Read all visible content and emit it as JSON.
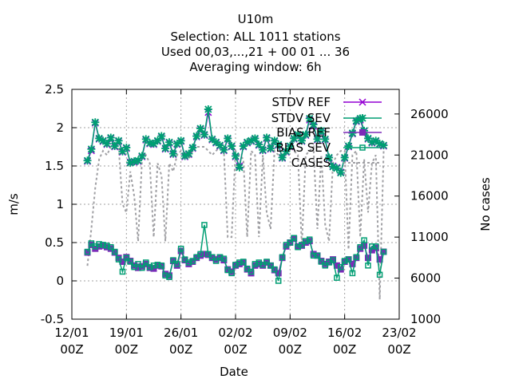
{
  "chart_data": {
    "type": "line",
    "title": [
      "U10m",
      "Selection: ALL    1011 stations",
      "Used  00,03,...,21  + 00 01 ... 36",
      "Averaging window:  6h"
    ],
    "xlabel": "Date",
    "ylabel": "m/s",
    "y2label": "No cases",
    "xlim": [
      "2024-01-12 00:00",
      "2024-02-23 00:00"
    ],
    "ylim": [
      -0.5,
      2.5
    ],
    "y2lim": [
      1000,
      29000
    ],
    "x_tick_labels": [
      [
        "12/01",
        "00Z"
      ],
      [
        "19/01",
        "00Z"
      ],
      [
        "26/01",
        "00Z"
      ],
      [
        "02/02",
        "00Z"
      ],
      [
        "09/02",
        "00Z"
      ],
      [
        "16/02",
        "00Z"
      ],
      [
        "23/02",
        "00Z"
      ]
    ],
    "y_tick_labels": [
      "-0.5",
      "0",
      "0.5",
      "1",
      "1.5",
      "2",
      "2.5"
    ],
    "y2_tick_labels": [
      "1000",
      "6000",
      "11000",
      "16000",
      "21000",
      "26000"
    ],
    "grid": true,
    "legend_position": "top-right",
    "x_dates": [
      "2024-01-14 00:00",
      "2024-01-14 12:00",
      "2024-01-15 00:00",
      "2024-01-15 12:00",
      "2024-01-16 00:00",
      "2024-01-16 12:00",
      "2024-01-17 00:00",
      "2024-01-17 12:00",
      "2024-01-18 00:00",
      "2024-01-18 12:00",
      "2024-01-19 00:00",
      "2024-01-19 12:00",
      "2024-01-20 00:00",
      "2024-01-20 12:00",
      "2024-01-21 00:00",
      "2024-01-21 12:00",
      "2024-01-22 00:00",
      "2024-01-22 12:00",
      "2024-01-23 00:00",
      "2024-01-23 12:00",
      "2024-01-24 00:00",
      "2024-01-24 12:00",
      "2024-01-25 00:00",
      "2024-01-25 12:00",
      "2024-01-26 00:00",
      "2024-01-26 12:00",
      "2024-01-27 00:00",
      "2024-01-27 12:00",
      "2024-01-28 00:00",
      "2024-01-28 12:00",
      "2024-01-29 00:00",
      "2024-01-29 12:00",
      "2024-01-30 00:00",
      "2024-01-30 12:00",
      "2024-01-31 00:00",
      "2024-01-31 12:00",
      "2024-02-01 00:00",
      "2024-02-01 12:00",
      "2024-02-02 00:00",
      "2024-02-02 12:00",
      "2024-02-03 00:00",
      "2024-02-03 12:00",
      "2024-02-04 00:00",
      "2024-02-04 12:00",
      "2024-02-05 00:00",
      "2024-02-05 12:00",
      "2024-02-06 00:00",
      "2024-02-06 12:00",
      "2024-02-07 00:00",
      "2024-02-07 12:00",
      "2024-02-08 00:00",
      "2024-02-08 12:00",
      "2024-02-09 00:00",
      "2024-02-09 12:00",
      "2024-02-10 00:00",
      "2024-02-10 12:00",
      "2024-02-11 00:00",
      "2024-02-11 12:00",
      "2024-02-12 00:00",
      "2024-02-12 12:00",
      "2024-02-13 00:00",
      "2024-02-13 12:00",
      "2024-02-14 00:00",
      "2024-02-14 12:00",
      "2024-02-15 00:00",
      "2024-02-15 12:00",
      "2024-02-16 00:00",
      "2024-02-16 12:00",
      "2024-02-17 00:00",
      "2024-02-17 12:00",
      "2024-02-18 00:00",
      "2024-02-18 12:00",
      "2024-02-19 00:00",
      "2024-02-19 12:00",
      "2024-02-20 00:00",
      "2024-02-20 12:00",
      "2024-02-21 00:00"
    ],
    "series": [
      {
        "name": "STDV REF",
        "axis": "y1",
        "color": "#9400d3",
        "marker": "cross",
        "values": [
          1.56,
          1.7,
          2.06,
          1.85,
          1.82,
          1.78,
          1.86,
          1.75,
          1.82,
          1.68,
          1.73,
          1.55,
          1.55,
          1.56,
          1.62,
          1.84,
          1.79,
          1.78,
          1.82,
          1.88,
          1.72,
          1.8,
          1.65,
          1.78,
          1.82,
          1.62,
          1.65,
          1.73,
          1.88,
          1.98,
          1.9,
          2.2,
          1.84,
          1.8,
          1.76,
          1.7,
          1.85,
          1.75,
          1.62,
          1.5,
          1.75,
          1.8,
          1.82,
          1.85,
          1.77,
          1.7,
          1.86,
          1.72,
          1.82,
          1.77,
          1.6,
          1.68,
          1.75,
          1.85,
          1.9,
          1.82,
          1.9,
          2.1,
          2.02,
          1.84,
          1.95,
          1.84,
          1.6,
          1.5,
          1.48,
          1.42,
          1.6,
          1.75,
          1.92,
          2.08,
          2.1,
          1.95,
          1.85,
          1.8,
          1.82,
          1.78,
          1.76
        ]
      },
      {
        "name": "STDV SEV",
        "axis": "y1",
        "color": "#009e73",
        "marker": "star",
        "values": [
          1.57,
          1.72,
          2.07,
          1.86,
          1.83,
          1.79,
          1.87,
          1.76,
          1.83,
          1.69,
          1.74,
          1.54,
          1.56,
          1.57,
          1.63,
          1.85,
          1.8,
          1.79,
          1.83,
          1.89,
          1.73,
          1.81,
          1.66,
          1.79,
          1.83,
          1.63,
          1.66,
          1.74,
          1.89,
          1.99,
          1.91,
          2.24,
          1.85,
          1.81,
          1.77,
          1.71,
          1.86,
          1.76,
          1.63,
          1.48,
          1.76,
          1.81,
          1.83,
          1.86,
          1.78,
          1.71,
          1.87,
          1.73,
          1.83,
          1.78,
          1.61,
          1.69,
          1.76,
          1.86,
          1.91,
          1.83,
          1.91,
          2.12,
          2.04,
          1.85,
          1.96,
          1.85,
          1.61,
          1.49,
          1.47,
          1.41,
          1.61,
          1.76,
          1.93,
          2.09,
          2.12,
          1.96,
          1.86,
          1.81,
          1.83,
          1.79,
          1.77
        ]
      },
      {
        "name": "BIAS REF",
        "axis": "y1",
        "color": "#7b2bb8",
        "marker": "square-filled",
        "values": [
          0.37,
          0.47,
          0.42,
          0.45,
          0.46,
          0.44,
          0.42,
          0.37,
          0.3,
          0.25,
          0.31,
          0.26,
          0.2,
          0.17,
          0.19,
          0.22,
          0.17,
          0.16,
          0.2,
          0.19,
          0.09,
          0.07,
          0.26,
          0.2,
          0.39,
          0.27,
          0.22,
          0.25,
          0.3,
          0.33,
          0.35,
          0.34,
          0.3,
          0.28,
          0.3,
          0.27,
          0.15,
          0.12,
          0.2,
          0.22,
          0.24,
          0.15,
          0.1,
          0.2,
          0.22,
          0.2,
          0.24,
          0.2,
          0.14,
          0.1,
          0.3,
          0.45,
          0.5,
          0.55,
          0.45,
          0.46,
          0.5,
          0.52,
          0.35,
          0.33,
          0.26,
          0.22,
          0.25,
          0.28,
          0.2,
          0.15,
          0.25,
          0.28,
          0.22,
          0.3,
          0.42,
          0.46,
          0.3,
          0.4,
          0.43,
          0.28,
          0.38
        ]
      },
      {
        "name": "BIAS SEV",
        "axis": "y1",
        "color": "#009e73",
        "marker": "square-open",
        "values": [
          0.38,
          0.49,
          0.45,
          0.48,
          0.47,
          0.46,
          0.44,
          0.38,
          0.28,
          0.12,
          0.3,
          0.25,
          0.18,
          0.22,
          0.17,
          0.24,
          0.18,
          0.2,
          0.21,
          0.2,
          0.07,
          0.05,
          0.27,
          0.22,
          0.42,
          0.28,
          0.24,
          0.26,
          0.31,
          0.35,
          0.73,
          0.35,
          0.31,
          0.26,
          0.31,
          0.29,
          0.14,
          0.1,
          0.21,
          0.24,
          0.25,
          0.16,
          0.12,
          0.22,
          0.24,
          0.21,
          0.25,
          0.2,
          0.15,
          0.0,
          0.31,
          0.47,
          0.5,
          0.56,
          0.44,
          0.47,
          0.52,
          0.54,
          0.33,
          0.33,
          0.25,
          0.2,
          0.24,
          0.27,
          0.04,
          0.18,
          0.26,
          0.28,
          0.1,
          0.31,
          0.44,
          0.53,
          0.2,
          0.45,
          0.45,
          0.08,
          0.38
        ]
      },
      {
        "name": "CASES",
        "axis": "y2",
        "color": "#a0a0a4",
        "marker": "none",
        "dashed": true,
        "values": [
          7500,
          12000,
          17000,
          20500,
          21500,
          21000,
          22000,
          22500,
          22000,
          15000,
          14000,
          19000,
          16000,
          10500,
          20500,
          21000,
          20000,
          11000,
          20000,
          18500,
          10500,
          20000,
          19000,
          21000,
          21500,
          21000,
          20500,
          21500,
          22000,
          22000,
          22000,
          21500,
          21000,
          21500,
          22000,
          21500,
          11000,
          11000,
          21500,
          21000,
          20500,
          11000,
          21500,
          21000,
          11000,
          21000,
          14000,
          12000,
          21500,
          21000,
          21000,
          21500,
          22000,
          21500,
          21000,
          10000,
          21000,
          21500,
          22000,
          12000,
          21000,
          12500,
          10500,
          20000,
          21000,
          21500,
          21500,
          9500,
          21000,
          21500,
          11000,
          20500,
          14000,
          20000,
          21000,
          3400,
          21500
        ]
      }
    ]
  }
}
